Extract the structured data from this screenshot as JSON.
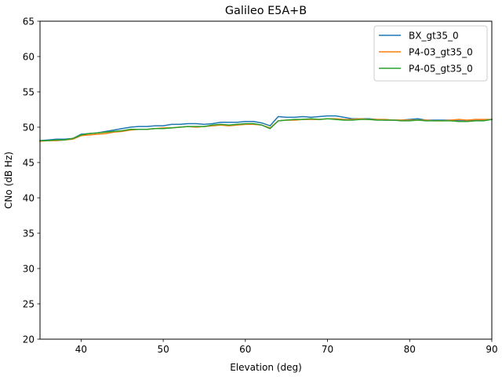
{
  "chart_data": {
    "type": "line",
    "title": "Galileo E5A+B",
    "xlabel": "Elevation (deg)",
    "ylabel": "CNo (dB Hz)",
    "xlim": [
      35,
      90
    ],
    "ylim": [
      20,
      65
    ],
    "xticks": [
      40,
      50,
      60,
      70,
      80,
      90
    ],
    "yticks": [
      20,
      25,
      30,
      35,
      40,
      45,
      50,
      55,
      60,
      65
    ],
    "grid": false,
    "legend_position": "top-right",
    "x": [
      35,
      36,
      37,
      38,
      39,
      40,
      41,
      42,
      43,
      44,
      45,
      46,
      47,
      48,
      49,
      50,
      51,
      52,
      53,
      54,
      55,
      56,
      57,
      58,
      59,
      60,
      61,
      62,
      63,
      64,
      65,
      66,
      67,
      68,
      69,
      70,
      71,
      72,
      73,
      74,
      75,
      76,
      77,
      78,
      79,
      80,
      81,
      82,
      83,
      84,
      85,
      86,
      87,
      88,
      89,
      90
    ],
    "series": [
      {
        "name": "BX_gt35_0",
        "color": "#1f77b4",
        "values": [
          48.1,
          48.2,
          48.3,
          48.3,
          48.4,
          49.0,
          49.1,
          49.2,
          49.4,
          49.6,
          49.8,
          50.0,
          50.1,
          50.1,
          50.2,
          50.2,
          50.4,
          50.4,
          50.5,
          50.5,
          50.4,
          50.5,
          50.7,
          50.7,
          50.7,
          50.8,
          50.8,
          50.6,
          50.2,
          51.5,
          51.4,
          51.4,
          51.5,
          51.4,
          51.5,
          51.6,
          51.6,
          51.4,
          51.2,
          51.2,
          51.2,
          51.1,
          51.0,
          51.0,
          51.0,
          51.1,
          51.2,
          51.0,
          51.0,
          51.0,
          51.0,
          50.9,
          50.9,
          51.0,
          51.0,
          51.1
        ]
      },
      {
        "name": "P4-03_gt35_0",
        "color": "#ff7f0e",
        "values": [
          48.0,
          48.1,
          48.1,
          48.2,
          48.3,
          48.8,
          48.9,
          49.0,
          49.1,
          49.3,
          49.4,
          49.6,
          49.7,
          49.7,
          49.8,
          49.9,
          49.9,
          50.0,
          50.1,
          50.0,
          50.1,
          50.2,
          50.3,
          50.2,
          50.3,
          50.4,
          50.4,
          50.3,
          49.9,
          50.9,
          51.0,
          51.0,
          51.1,
          51.1,
          51.1,
          51.2,
          51.2,
          51.1,
          51.1,
          51.2,
          51.1,
          51.1,
          51.1,
          51.0,
          51.0,
          51.0,
          51.0,
          51.0,
          50.9,
          50.9,
          51.0,
          51.1,
          51.0,
          51.1,
          51.1,
          51.1
        ]
      },
      {
        "name": "P4-05_gt35_0",
        "color": "#2ca02c",
        "values": [
          48.1,
          48.1,
          48.2,
          48.2,
          48.4,
          48.9,
          49.1,
          49.2,
          49.3,
          49.4,
          49.5,
          49.7,
          49.7,
          49.7,
          49.8,
          49.8,
          49.9,
          50.0,
          50.1,
          50.1,
          50.1,
          50.3,
          50.4,
          50.3,
          50.4,
          50.5,
          50.5,
          50.3,
          49.8,
          50.9,
          51.0,
          51.1,
          51.1,
          51.2,
          51.1,
          51.2,
          51.1,
          51.0,
          51.0,
          51.1,
          51.1,
          51.0,
          51.0,
          51.0,
          50.9,
          50.9,
          51.0,
          50.9,
          50.9,
          50.9,
          50.9,
          50.8,
          50.8,
          50.9,
          50.9,
          51.1
        ]
      }
    ]
  }
}
